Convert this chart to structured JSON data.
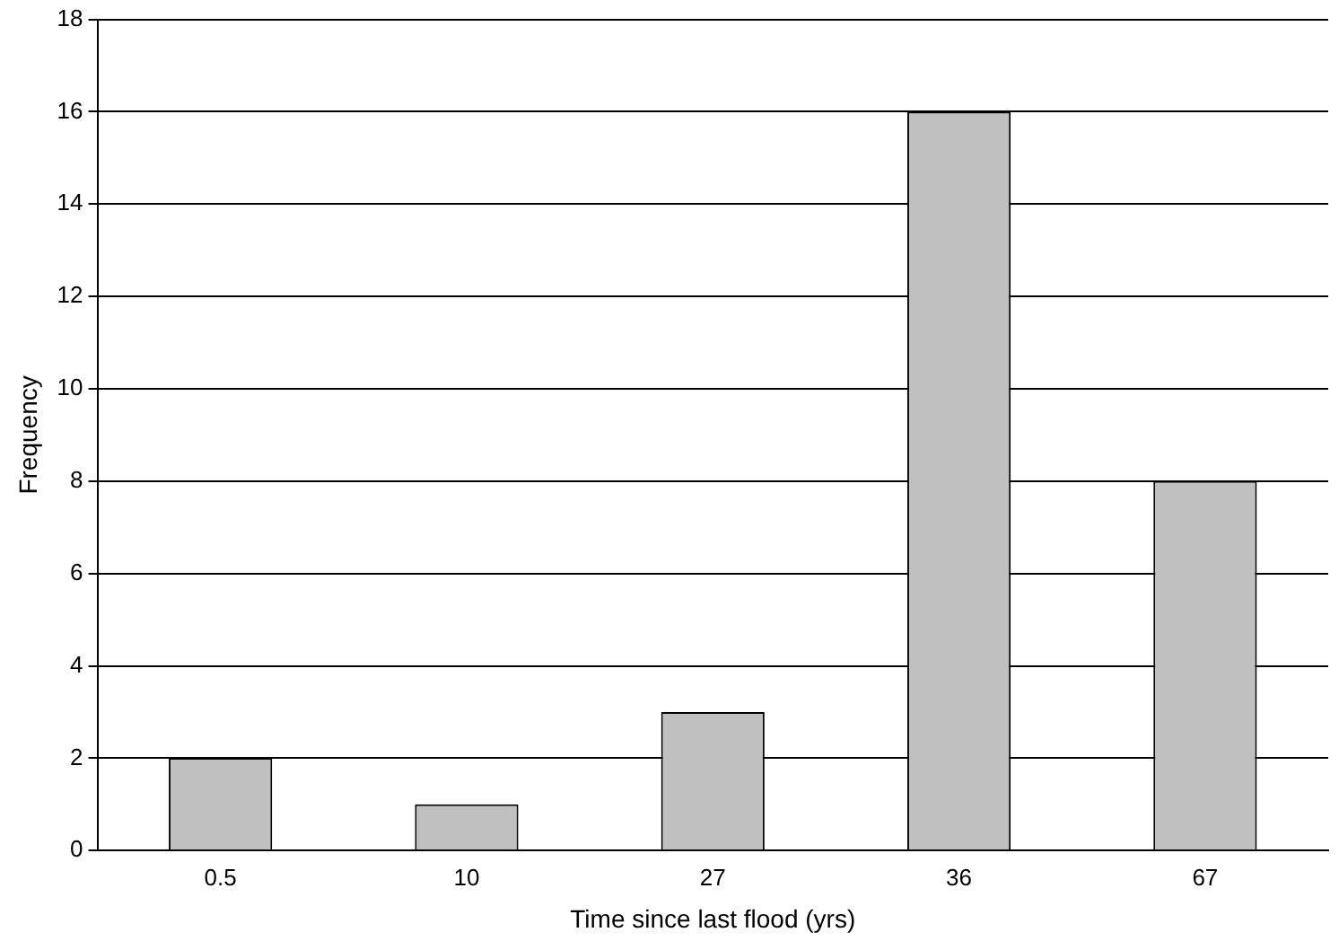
{
  "chart_data": {
    "type": "bar",
    "xlabel": "Time since last flood (yrs)",
    "ylabel": "Frequency",
    "categories": [
      "0.5",
      "10",
      "27",
      "36",
      "67"
    ],
    "values": [
      2,
      1,
      3,
      16,
      8
    ],
    "color": "#c0c0c0",
    "ylim": [
      0,
      18
    ],
    "yticks": [
      0,
      2,
      4,
      6,
      8,
      10,
      12,
      14,
      16,
      18
    ],
    "grid": "y",
    "legend": false
  }
}
